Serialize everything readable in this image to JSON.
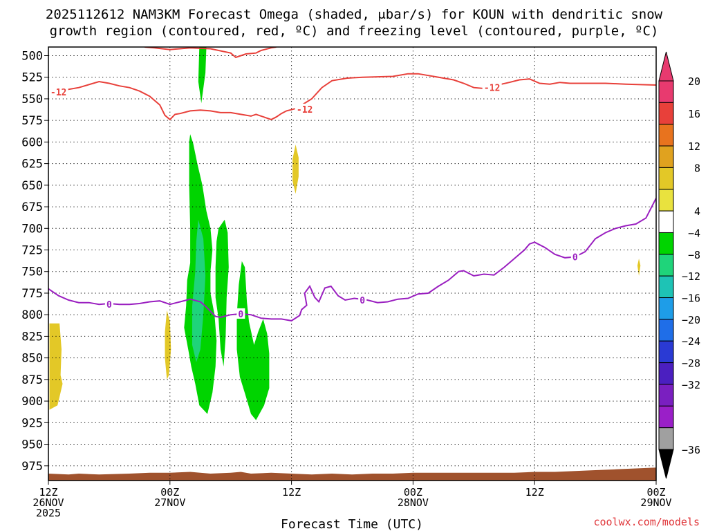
{
  "title": {
    "line1": "2025112612 NAM3KM Forecast Omega (shaded, μbar/s) for KOUN with dendritic snow",
    "line2": "growth region (contoured, red, ºC) and freezing level (contoured, purple, ºC)"
  },
  "credit": "coolwx.com/models",
  "chart_data": {
    "type": "time-height",
    "xlabel": "Forecast Time (UTC)",
    "ylabel": "",
    "x_range_hours": [
      0,
      60
    ],
    "y_range_hpa": [
      490,
      992
    ],
    "y_scale": "reversed",
    "grid": true,
    "yticks": [
      500,
      525,
      550,
      575,
      600,
      625,
      650,
      675,
      700,
      725,
      750,
      775,
      800,
      825,
      850,
      875,
      900,
      925,
      950,
      975
    ],
    "xticks": [
      {
        "hour": 0,
        "lines": [
          "12Z",
          "26NOV",
          "2025"
        ]
      },
      {
        "hour": 12,
        "lines": [
          "00Z",
          "27NOV"
        ]
      },
      {
        "hour": 24,
        "lines": [
          "12Z"
        ]
      },
      {
        "hour": 36,
        "lines": [
          "00Z",
          "28NOV"
        ]
      },
      {
        "hour": 48,
        "lines": [
          "12Z"
        ]
      },
      {
        "hour": 60,
        "lines": [
          "00Z",
          "29NOV"
        ]
      }
    ],
    "colorbar": {
      "labels": [
        "20",
        "16",
        "12",
        "8",
        "4",
        "−4",
        "−8",
        "−12",
        "−16",
        "−20",
        "−24",
        "−28",
        "−32",
        "−36"
      ],
      "colors": [
        "#e83a6f",
        "#e8403a",
        "#e8731e",
        "#e0a21f",
        "#e3c827",
        "#e9e23e",
        "#ffffff",
        "#00d400",
        "#1fd47a",
        "#1ec3b5",
        "#1e9de8",
        "#1f6ee8",
        "#2a3ad4",
        "#4b1fc0",
        "#7a1fc0",
        "#9a1fc8",
        "#a0a0a0"
      ],
      "max_arrow_color": "#e83a6f",
      "min_arrow_color": "#000000"
    },
    "dgz_contour": {
      "name": "-12",
      "color": "#e8403a",
      "labels": [
        "-12",
        "-12",
        "-12"
      ],
      "upper_points": [
        [
          9.5,
          490
        ],
        [
          10.5,
          491
        ],
        [
          12,
          493
        ],
        [
          14,
          491
        ],
        [
          16,
          492
        ],
        [
          18,
          497
        ],
        [
          18.5,
          502
        ],
        [
          19.5,
          498
        ],
        [
          20.5,
          497
        ],
        [
          21,
          494
        ],
        [
          22,
          491
        ],
        [
          22.5,
          490
        ]
      ],
      "lower_points": [
        [
          0,
          542
        ],
        [
          1,
          541
        ],
        [
          3,
          537
        ],
        [
          5,
          530
        ],
        [
          6,
          532
        ],
        [
          7,
          535
        ],
        [
          8,
          537
        ],
        [
          9,
          541
        ],
        [
          10,
          547
        ],
        [
          11,
          557
        ],
        [
          11.5,
          569
        ],
        [
          12,
          574
        ],
        [
          12.5,
          568
        ],
        [
          13,
          567
        ],
        [
          14,
          564
        ],
        [
          15,
          563
        ],
        [
          16,
          564
        ],
        [
          17,
          566
        ],
        [
          18,
          566
        ],
        [
          19,
          568
        ],
        [
          20,
          570
        ],
        [
          20.5,
          568
        ],
        [
          21.5,
          572
        ],
        [
          22,
          574
        ],
        [
          22.5,
          571
        ],
        [
          23,
          567
        ],
        [
          23.5,
          564
        ],
        [
          24.5,
          561
        ],
        [
          26,
          550
        ],
        [
          27,
          537
        ],
        [
          28,
          529
        ],
        [
          29.5,
          526
        ],
        [
          31,
          525
        ],
        [
          34,
          524
        ],
        [
          35.5,
          521
        ],
        [
          36.5,
          521
        ],
        [
          37.5,
          523
        ],
        [
          39,
          526
        ],
        [
          40,
          528
        ],
        [
          41,
          532
        ],
        [
          42,
          537
        ],
        [
          43,
          538
        ],
        [
          44,
          535
        ],
        [
          45.5,
          531
        ],
        [
          46.5,
          528
        ],
        [
          47.5,
          527
        ],
        [
          48.5,
          532
        ],
        [
          49.5,
          533
        ],
        [
          50.5,
          531
        ],
        [
          51.5,
          532
        ],
        [
          53,
          532
        ],
        [
          55,
          532
        ],
        [
          57,
          533
        ],
        [
          60,
          534
        ]
      ]
    },
    "freezing_contour": {
      "name": "0",
      "color": "#9a1fc0",
      "labels": [
        "0",
        "0",
        "0",
        "0"
      ],
      "points": [
        [
          0,
          770
        ],
        [
          1,
          778
        ],
        [
          2,
          783
        ],
        [
          3,
          786
        ],
        [
          4,
          786
        ],
        [
          5,
          788
        ],
        [
          6,
          787
        ],
        [
          7,
          788
        ],
        [
          8,
          788
        ],
        [
          9,
          787
        ],
        [
          10,
          785
        ],
        [
          11,
          784
        ],
        [
          12,
          788
        ],
        [
          13,
          785
        ],
        [
          14,
          782
        ],
        [
          15,
          785
        ],
        [
          15.5,
          790
        ],
        [
          16.5,
          802
        ],
        [
          17,
          803
        ],
        [
          18,
          800
        ],
        [
          19,
          799
        ],
        [
          20,
          800
        ],
        [
          21,
          804
        ],
        [
          22,
          805
        ],
        [
          23,
          805
        ],
        [
          24,
          807
        ],
        [
          24.8,
          801
        ],
        [
          25,
          794
        ],
        [
          25.5,
          789
        ],
        [
          25.3,
          775
        ],
        [
          25.8,
          767
        ],
        [
          26.3,
          780
        ],
        [
          26.7,
          785
        ],
        [
          27.3,
          769
        ],
        [
          27.9,
          767
        ],
        [
          28.6,
          778
        ],
        [
          29.3,
          783
        ],
        [
          30.2,
          781
        ],
        [
          31.5,
          783
        ],
        [
          32.5,
          786
        ],
        [
          33.5,
          785
        ],
        [
          34.5,
          782
        ],
        [
          35.5,
          781
        ],
        [
          36.5,
          776
        ],
        [
          37.5,
          775
        ],
        [
          38.5,
          767
        ],
        [
          39.5,
          760
        ],
        [
          40.5,
          750
        ],
        [
          41,
          749
        ],
        [
          42,
          755
        ],
        [
          43,
          753
        ],
        [
          44,
          754
        ],
        [
          45,
          745
        ],
        [
          46,
          735
        ],
        [
          47,
          725
        ],
        [
          47.5,
          718
        ],
        [
          48,
          716
        ],
        [
          49,
          722
        ],
        [
          50,
          730
        ],
        [
          51,
          734
        ],
        [
          52,
          733
        ],
        [
          53,
          727
        ],
        [
          54,
          712
        ],
        [
          55,
          705
        ],
        [
          56,
          700
        ],
        [
          57,
          697
        ],
        [
          58,
          695
        ],
        [
          59,
          688
        ],
        [
          60,
          665
        ]
      ]
    },
    "omega_shading": [
      {
        "bin": "-8",
        "color": "#00d400",
        "outline": [
          [
            14.9,
            490
          ],
          [
            15.6,
            490
          ],
          [
            15.5,
            520
          ],
          [
            15.1,
            555
          ],
          [
            14.8,
            530
          ]
        ]
      },
      {
        "bin": "-8",
        "color": "#00d400",
        "outline": [
          [
            14.0,
            591
          ],
          [
            14.3,
            602
          ],
          [
            14.7,
            625
          ],
          [
            15.2,
            650
          ],
          [
            15.6,
            680
          ],
          [
            16.0,
            700
          ],
          [
            16.2,
            725
          ],
          [
            16.0,
            750
          ],
          [
            16.0,
            775
          ],
          [
            16.4,
            800
          ],
          [
            16.6,
            830
          ],
          [
            16.5,
            860
          ],
          [
            16.2,
            890
          ],
          [
            15.7,
            915
          ],
          [
            14.9,
            905
          ],
          [
            14.5,
            880
          ],
          [
            14.1,
            860
          ],
          [
            13.8,
            840
          ],
          [
            13.4,
            815
          ],
          [
            13.6,
            790
          ],
          [
            13.7,
            760
          ],
          [
            14.0,
            740
          ],
          [
            14.0,
            700
          ],
          [
            13.9,
            650
          ],
          [
            13.9,
            620
          ],
          [
            13.9,
            600
          ]
        ]
      },
      {
        "bin": "-8",
        "color": "#00d400",
        "outline": [
          [
            16.8,
            700
          ],
          [
            17.4,
            690
          ],
          [
            17.7,
            705
          ],
          [
            17.8,
            745
          ],
          [
            17.6,
            780
          ],
          [
            17.5,
            825
          ],
          [
            17.3,
            860
          ],
          [
            17.0,
            840
          ],
          [
            16.8,
            805
          ],
          [
            16.5,
            780
          ],
          [
            16.5,
            745
          ],
          [
            16.6,
            715
          ]
        ]
      },
      {
        "bin": "-8",
        "color": "#00d400",
        "outline": [
          [
            19.1,
            738
          ],
          [
            19.4,
            745
          ],
          [
            19.6,
            785
          ],
          [
            19.8,
            808
          ],
          [
            20.3,
            835
          ],
          [
            20.7,
            820
          ],
          [
            21.2,
            805
          ],
          [
            21.6,
            822
          ],
          [
            21.8,
            845
          ],
          [
            21.8,
            885
          ],
          [
            21.3,
            905
          ],
          [
            20.5,
            922
          ],
          [
            20.0,
            915
          ],
          [
            19.5,
            895
          ],
          [
            18.9,
            872
          ],
          [
            18.6,
            840
          ],
          [
            18.6,
            800
          ],
          [
            18.8,
            765
          ]
        ]
      },
      {
        "bin": "-12",
        "color": "#1fd47a",
        "outline": [
          [
            14.8,
            690
          ],
          [
            15.3,
            712
          ],
          [
            15.5,
            755
          ],
          [
            15.3,
            800
          ],
          [
            15.0,
            840
          ],
          [
            14.6,
            855
          ],
          [
            14.2,
            835
          ],
          [
            14.2,
            790
          ],
          [
            14.5,
            750
          ],
          [
            14.6,
            715
          ]
        ]
      },
      {
        "bin": "4",
        "color": "#e3c827",
        "outline": [
          [
            0.1,
            810
          ],
          [
            1.1,
            810
          ],
          [
            1.3,
            840
          ],
          [
            1.2,
            870
          ],
          [
            1.4,
            880
          ],
          [
            1.2,
            890
          ],
          [
            0.9,
            905
          ],
          [
            0.1,
            910
          ]
        ]
      },
      {
        "bin": "4",
        "color": "#e3c827",
        "outline": [
          [
            11.7,
            795
          ],
          [
            12.0,
            808
          ],
          [
            12.1,
            840
          ],
          [
            11.9,
            870
          ],
          [
            11.7,
            875
          ],
          [
            11.5,
            850
          ],
          [
            11.5,
            820
          ]
        ]
      },
      {
        "bin": "4",
        "color": "#e3c827",
        "outline": [
          [
            24.4,
            603
          ],
          [
            24.7,
            618
          ],
          [
            24.7,
            640
          ],
          [
            24.4,
            660
          ],
          [
            24.1,
            645
          ],
          [
            24.1,
            620
          ]
        ]
      },
      {
        "bin": "4",
        "color": "#e3c827",
        "outline": [
          [
            58.3,
            735
          ],
          [
            58.45,
            743
          ],
          [
            58.3,
            755
          ],
          [
            58.15,
            743
          ]
        ]
      }
    ],
    "terrain": {
      "color": "#a0522d",
      "top_points": [
        [
          0,
          984
        ],
        [
          2,
          985
        ],
        [
          3,
          984
        ],
        [
          5,
          985
        ],
        [
          8,
          984
        ],
        [
          10,
          983
        ],
        [
          12,
          983
        ],
        [
          14,
          982
        ],
        [
          16,
          984
        ],
        [
          18,
          983
        ],
        [
          19,
          982
        ],
        [
          20,
          984
        ],
        [
          22,
          983
        ],
        [
          24,
          984
        ],
        [
          26,
          985
        ],
        [
          28,
          984
        ],
        [
          30,
          985
        ],
        [
          32,
          984
        ],
        [
          34,
          984
        ],
        [
          36,
          983
        ],
        [
          38,
          983
        ],
        [
          40,
          983
        ],
        [
          42,
          983
        ],
        [
          44,
          983
        ],
        [
          46,
          983
        ],
        [
          48,
          982
        ],
        [
          50,
          982
        ],
        [
          52,
          981
        ],
        [
          54,
          980
        ],
        [
          56,
          979
        ],
        [
          58,
          978
        ],
        [
          60,
          977
        ]
      ]
    }
  }
}
